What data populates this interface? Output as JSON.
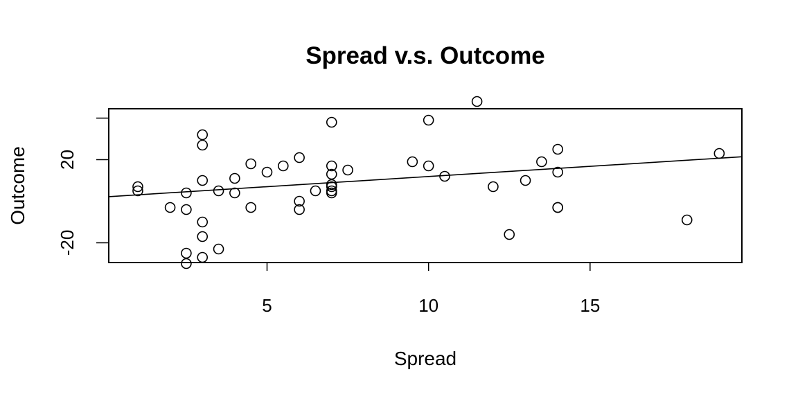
{
  "chart_data": {
    "type": "scatter",
    "title": "Spread v.s. Outcome",
    "xlabel": "Spread",
    "ylabel": "Outcome",
    "xlim": [
      0.1,
      19.7
    ],
    "ylim": [
      -29.5,
      44.5
    ],
    "xticks": [
      5,
      10,
      15
    ],
    "xtick_labels": [
      "5",
      "10",
      "15"
    ],
    "yticks": [
      -20,
      20
    ],
    "ytick_labels": [
      "-20",
      "20"
    ],
    "extra_yticks_unlabeled": [
      40
    ],
    "grid": false,
    "legend": "none",
    "regression_line": {
      "x": [
        0.1,
        19.7
      ],
      "y": [
        2.2,
        21.4
      ]
    },
    "points": [
      {
        "x": 1.0,
        "y": 7
      },
      {
        "x": 1.0,
        "y": 5
      },
      {
        "x": 2.0,
        "y": -3
      },
      {
        "x": 2.5,
        "y": 4
      },
      {
        "x": 2.5,
        "y": -4
      },
      {
        "x": 2.5,
        "y": -25
      },
      {
        "x": 2.5,
        "y": -30
      },
      {
        "x": 3.0,
        "y": 32
      },
      {
        "x": 3.0,
        "y": 27
      },
      {
        "x": 3.0,
        "y": 10
      },
      {
        "x": 3.0,
        "y": -10
      },
      {
        "x": 3.0,
        "y": -17
      },
      {
        "x": 3.0,
        "y": -27
      },
      {
        "x": 3.5,
        "y": 5
      },
      {
        "x": 3.5,
        "y": -23
      },
      {
        "x": 4.0,
        "y": 11
      },
      {
        "x": 4.0,
        "y": 4
      },
      {
        "x": 4.5,
        "y": 18
      },
      {
        "x": 4.5,
        "y": -3
      },
      {
        "x": 5.0,
        "y": 14
      },
      {
        "x": 5.5,
        "y": 17
      },
      {
        "x": 6.0,
        "y": 21
      },
      {
        "x": 6.0,
        "y": 0
      },
      {
        "x": 6.0,
        "y": -4
      },
      {
        "x": 6.5,
        "y": 5
      },
      {
        "x": 7.0,
        "y": 38
      },
      {
        "x": 7.0,
        "y": 17
      },
      {
        "x": 7.0,
        "y": 13
      },
      {
        "x": 7.0,
        "y": 8
      },
      {
        "x": 7.0,
        "y": 7
      },
      {
        "x": 7.0,
        "y": 5
      },
      {
        "x": 7.0,
        "y": 4
      },
      {
        "x": 7.5,
        "y": 15
      },
      {
        "x": 9.5,
        "y": 19
      },
      {
        "x": 10.0,
        "y": 39
      },
      {
        "x": 10.0,
        "y": 17
      },
      {
        "x": 10.5,
        "y": 12
      },
      {
        "x": 11.5,
        "y": 48
      },
      {
        "x": 12.0,
        "y": 7
      },
      {
        "x": 12.5,
        "y": -16
      },
      {
        "x": 13.0,
        "y": 10
      },
      {
        "x": 13.5,
        "y": 19
      },
      {
        "x": 14.0,
        "y": 25
      },
      {
        "x": 14.0,
        "y": 14
      },
      {
        "x": 14.0,
        "y": -3
      },
      {
        "x": 14.0,
        "y": -3
      },
      {
        "x": 18.0,
        "y": -9
      },
      {
        "x": 19.0,
        "y": 23
      }
    ]
  }
}
